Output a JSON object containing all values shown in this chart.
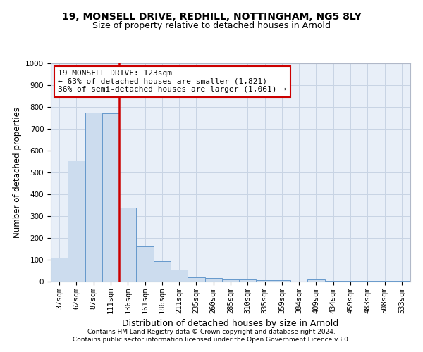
{
  "title1": "19, MONSELL DRIVE, REDHILL, NOTTINGHAM, NG5 8LY",
  "title2": "Size of property relative to detached houses in Arnold",
  "xlabel": "Distribution of detached houses by size in Arnold",
  "ylabel": "Number of detached properties",
  "categories": [
    "37sqm",
    "62sqm",
    "87sqm",
    "111sqm",
    "136sqm",
    "161sqm",
    "186sqm",
    "211sqm",
    "235sqm",
    "260sqm",
    "285sqm",
    "310sqm",
    "335sqm",
    "359sqm",
    "384sqm",
    "409sqm",
    "434sqm",
    "459sqm",
    "483sqm",
    "508sqm",
    "533sqm"
  ],
  "values": [
    110,
    555,
    775,
    770,
    340,
    160,
    95,
    55,
    20,
    15,
    10,
    10,
    8,
    5,
    0,
    10,
    3,
    3,
    3,
    3,
    3
  ],
  "bar_color": "#ccdcee",
  "bar_edge_color": "#6699cc",
  "grid_color": "#c8d4e4",
  "background_color": "#e8eff8",
  "ref_line_color": "#cc0000",
  "annotation_text": "19 MONSELL DRIVE: 123sqm\n← 63% of detached houses are smaller (1,821)\n36% of semi-detached houses are larger (1,061) →",
  "annotation_box_color": "#cc0000",
  "annotation_bg": "#ffffff",
  "ylim": [
    0,
    1000
  ],
  "yticks": [
    0,
    100,
    200,
    300,
    400,
    500,
    600,
    700,
    800,
    900,
    1000
  ],
  "footer1": "Contains HM Land Registry data © Crown copyright and database right 2024.",
  "footer2": "Contains public sector information licensed under the Open Government Licence v3.0.",
  "title1_fontsize": 10,
  "title2_fontsize": 9,
  "tick_fontsize": 7.5,
  "ylabel_fontsize": 8.5,
  "xlabel_fontsize": 9,
  "annotation_fontsize": 8,
  "footer_fontsize": 6.5
}
